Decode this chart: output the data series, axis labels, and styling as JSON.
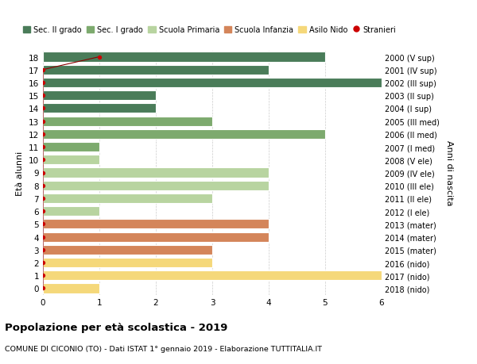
{
  "ages": [
    18,
    17,
    16,
    15,
    14,
    13,
    12,
    11,
    10,
    9,
    8,
    7,
    6,
    5,
    4,
    3,
    2,
    1,
    0
  ],
  "right_labels": [
    "2000 (V sup)",
    "2001 (IV sup)",
    "2002 (III sup)",
    "2003 (II sup)",
    "2004 (I sup)",
    "2005 (III med)",
    "2006 (II med)",
    "2007 (I med)",
    "2008 (V ele)",
    "2009 (IV ele)",
    "2010 (III ele)",
    "2011 (II ele)",
    "2012 (I ele)",
    "2013 (mater)",
    "2014 (mater)",
    "2015 (mater)",
    "2016 (nido)",
    "2017 (nido)",
    "2018 (nido)"
  ],
  "bar_values": [
    5,
    4,
    6,
    2,
    2,
    3,
    5,
    1,
    1,
    4,
    4,
    3,
    1,
    4,
    4,
    3,
    3,
    6,
    1
  ],
  "stranieri_x": [
    1,
    0,
    0,
    0,
    0,
    0,
    0,
    0,
    0,
    0,
    0,
    0,
    0,
    0,
    0,
    0,
    0,
    0,
    0
  ],
  "bar_colors": [
    "#4a7c59",
    "#4a7c59",
    "#4a7c59",
    "#4a7c59",
    "#4a7c59",
    "#7daa6e",
    "#7daa6e",
    "#7daa6e",
    "#b8d4a0",
    "#b8d4a0",
    "#b8d4a0",
    "#b8d4a0",
    "#b8d4a0",
    "#d4855a",
    "#d4855a",
    "#d4855a",
    "#f5d87a",
    "#f5d87a",
    "#f5d87a"
  ],
  "legend_labels": [
    "Sec. II grado",
    "Sec. I grado",
    "Scuola Primaria",
    "Scuola Infanzia",
    "Asilo Nido",
    "Stranieri"
  ],
  "legend_colors": [
    "#4a7c59",
    "#7daa6e",
    "#b8d4a0",
    "#d4855a",
    "#f5d87a",
    "#cc0000"
  ],
  "title": "Popolazione per età scolastica - 2019",
  "subtitle": "COMUNE DI CICONIO (TO) - Dati ISTAT 1° gennaio 2019 - Elaborazione TUTTITALIA.IT",
  "ylabel": "Età alunni",
  "right_ylabel": "Anni di nascita",
  "xlim": [
    0,
    6
  ],
  "xticks": [
    0,
    1,
    2,
    3,
    4,
    5,
    6
  ],
  "bar_height": 0.75,
  "stranieri_line_color": "#8b0000",
  "stranieri_dot_color": "#cc0000",
  "bg_color": "#ffffff",
  "grid_color": "#cccccc"
}
